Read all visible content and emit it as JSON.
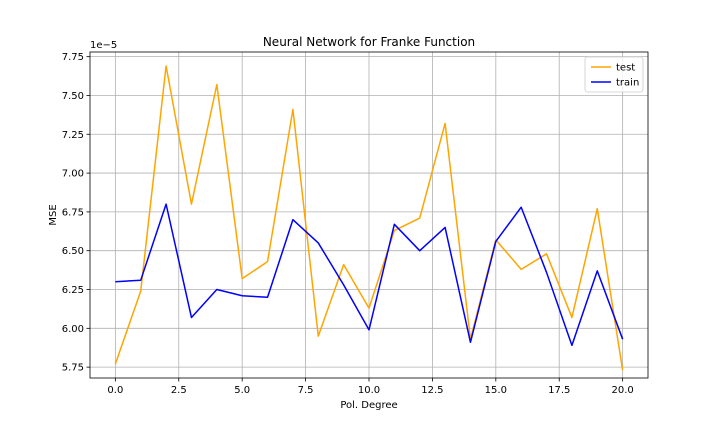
{
  "chart_data": {
    "type": "line",
    "title": "Neural Network for Franke Function",
    "xlabel": "Pol. Degree",
    "ylabel": "MSE",
    "offset_text": "1e−5",
    "xlim": [
      -1,
      21
    ],
    "ylim": [
      5.68,
      7.78
    ],
    "xticks": [
      0.0,
      2.5,
      5.0,
      7.5,
      10.0,
      12.5,
      15.0,
      17.5,
      20.0
    ],
    "xtick_labels": [
      "0.0",
      "2.5",
      "5.0",
      "7.5",
      "10.0",
      "12.5",
      "15.0",
      "17.5",
      "20.0"
    ],
    "yticks": [
      5.75,
      6.0,
      6.25,
      6.5,
      6.75,
      7.0,
      7.25,
      7.5,
      7.75
    ],
    "ytick_labels": [
      "5.75",
      "6.00",
      "6.25",
      "6.50",
      "6.75",
      "7.00",
      "7.25",
      "7.50",
      "7.75"
    ],
    "grid": true,
    "legend_position": "top-right",
    "x": [
      0,
      1,
      2,
      3,
      4,
      5,
      6,
      7,
      8,
      9,
      10,
      11,
      12,
      13,
      14,
      15,
      16,
      17,
      18,
      19,
      20
    ],
    "series": [
      {
        "name": "test",
        "color": "#ffa500",
        "values": [
          5.77,
          6.24,
          7.69,
          6.8,
          7.57,
          6.32,
          6.43,
          7.41,
          5.95,
          6.41,
          6.13,
          6.63,
          6.71,
          7.32,
          5.93,
          6.57,
          6.38,
          6.48,
          6.07,
          6.77,
          5.73
        ]
      },
      {
        "name": "train",
        "color": "#0000ff",
        "values": [
          6.3,
          6.31,
          6.8,
          6.07,
          6.25,
          6.21,
          6.2,
          6.7,
          6.55,
          6.28,
          5.99,
          6.67,
          6.5,
          6.65,
          5.91,
          6.56,
          6.78,
          6.36,
          5.89,
          6.37,
          5.93
        ]
      }
    ]
  }
}
